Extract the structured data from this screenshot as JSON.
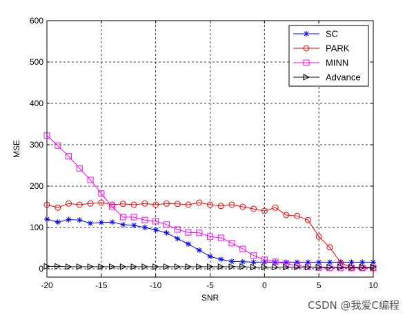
{
  "watermark": "CSDN @我爱C编程",
  "chart_data": {
    "type": "line",
    "title": "",
    "xlabel": "SNR",
    "ylabel": "MSE",
    "xlim": [
      -20,
      10
    ],
    "ylim": [
      -20,
      600
    ],
    "xticks": [
      -20,
      -15,
      -10,
      -5,
      0,
      5,
      10
    ],
    "yticks": [
      0,
      100,
      200,
      300,
      400,
      500,
      600
    ],
    "grid": true,
    "legend_position": "top-right",
    "x": [
      -20,
      -19,
      -18,
      -17,
      -16,
      -15,
      -14,
      -13,
      -12,
      -11,
      -10,
      -9,
      -8,
      -7,
      -6,
      -5,
      -4,
      -3,
      -2,
      -1,
      0,
      1,
      2,
      3,
      4,
      5,
      6,
      7,
      8,
      9,
      10
    ],
    "series": [
      {
        "name": "SC",
        "color": "#0000ff",
        "marker": "star",
        "values": [
          120,
          113,
          119,
          118,
          110,
          112,
          113,
          107,
          105,
          100,
          94,
          87,
          73,
          60,
          45,
          30,
          23,
          18,
          17,
          16,
          16,
          16,
          16,
          16,
          16,
          16,
          16,
          16,
          16,
          16,
          16
        ]
      },
      {
        "name": "PARK",
        "color": "#ff0000",
        "marker": "circle",
        "values": [
          155,
          148,
          158,
          155,
          158,
          160,
          155,
          157,
          155,
          158,
          155,
          158,
          157,
          155,
          160,
          155,
          152,
          155,
          150,
          145,
          140,
          148,
          130,
          128,
          118,
          78,
          52,
          15,
          3,
          2,
          2
        ]
      },
      {
        "name": "MINN",
        "color": "#ff00ff",
        "marker": "square",
        "values": [
          322,
          298,
          272,
          243,
          215,
          182,
          150,
          125,
          125,
          118,
          115,
          107,
          95,
          88,
          87,
          78,
          75,
          62,
          48,
          32,
          22,
          17,
          12,
          8,
          5,
          3,
          2,
          2,
          2,
          2,
          2
        ]
      },
      {
        "name": "Advance",
        "color": "#000000",
        "marker": "triangle-right",
        "values": [
          6,
          6,
          5,
          5,
          5,
          5,
          5,
          5,
          5,
          5,
          5,
          5,
          5,
          5,
          5,
          5,
          5,
          5,
          5,
          4,
          4,
          4,
          4,
          4,
          4,
          4,
          4,
          4,
          4,
          4,
          4
        ]
      }
    ]
  }
}
